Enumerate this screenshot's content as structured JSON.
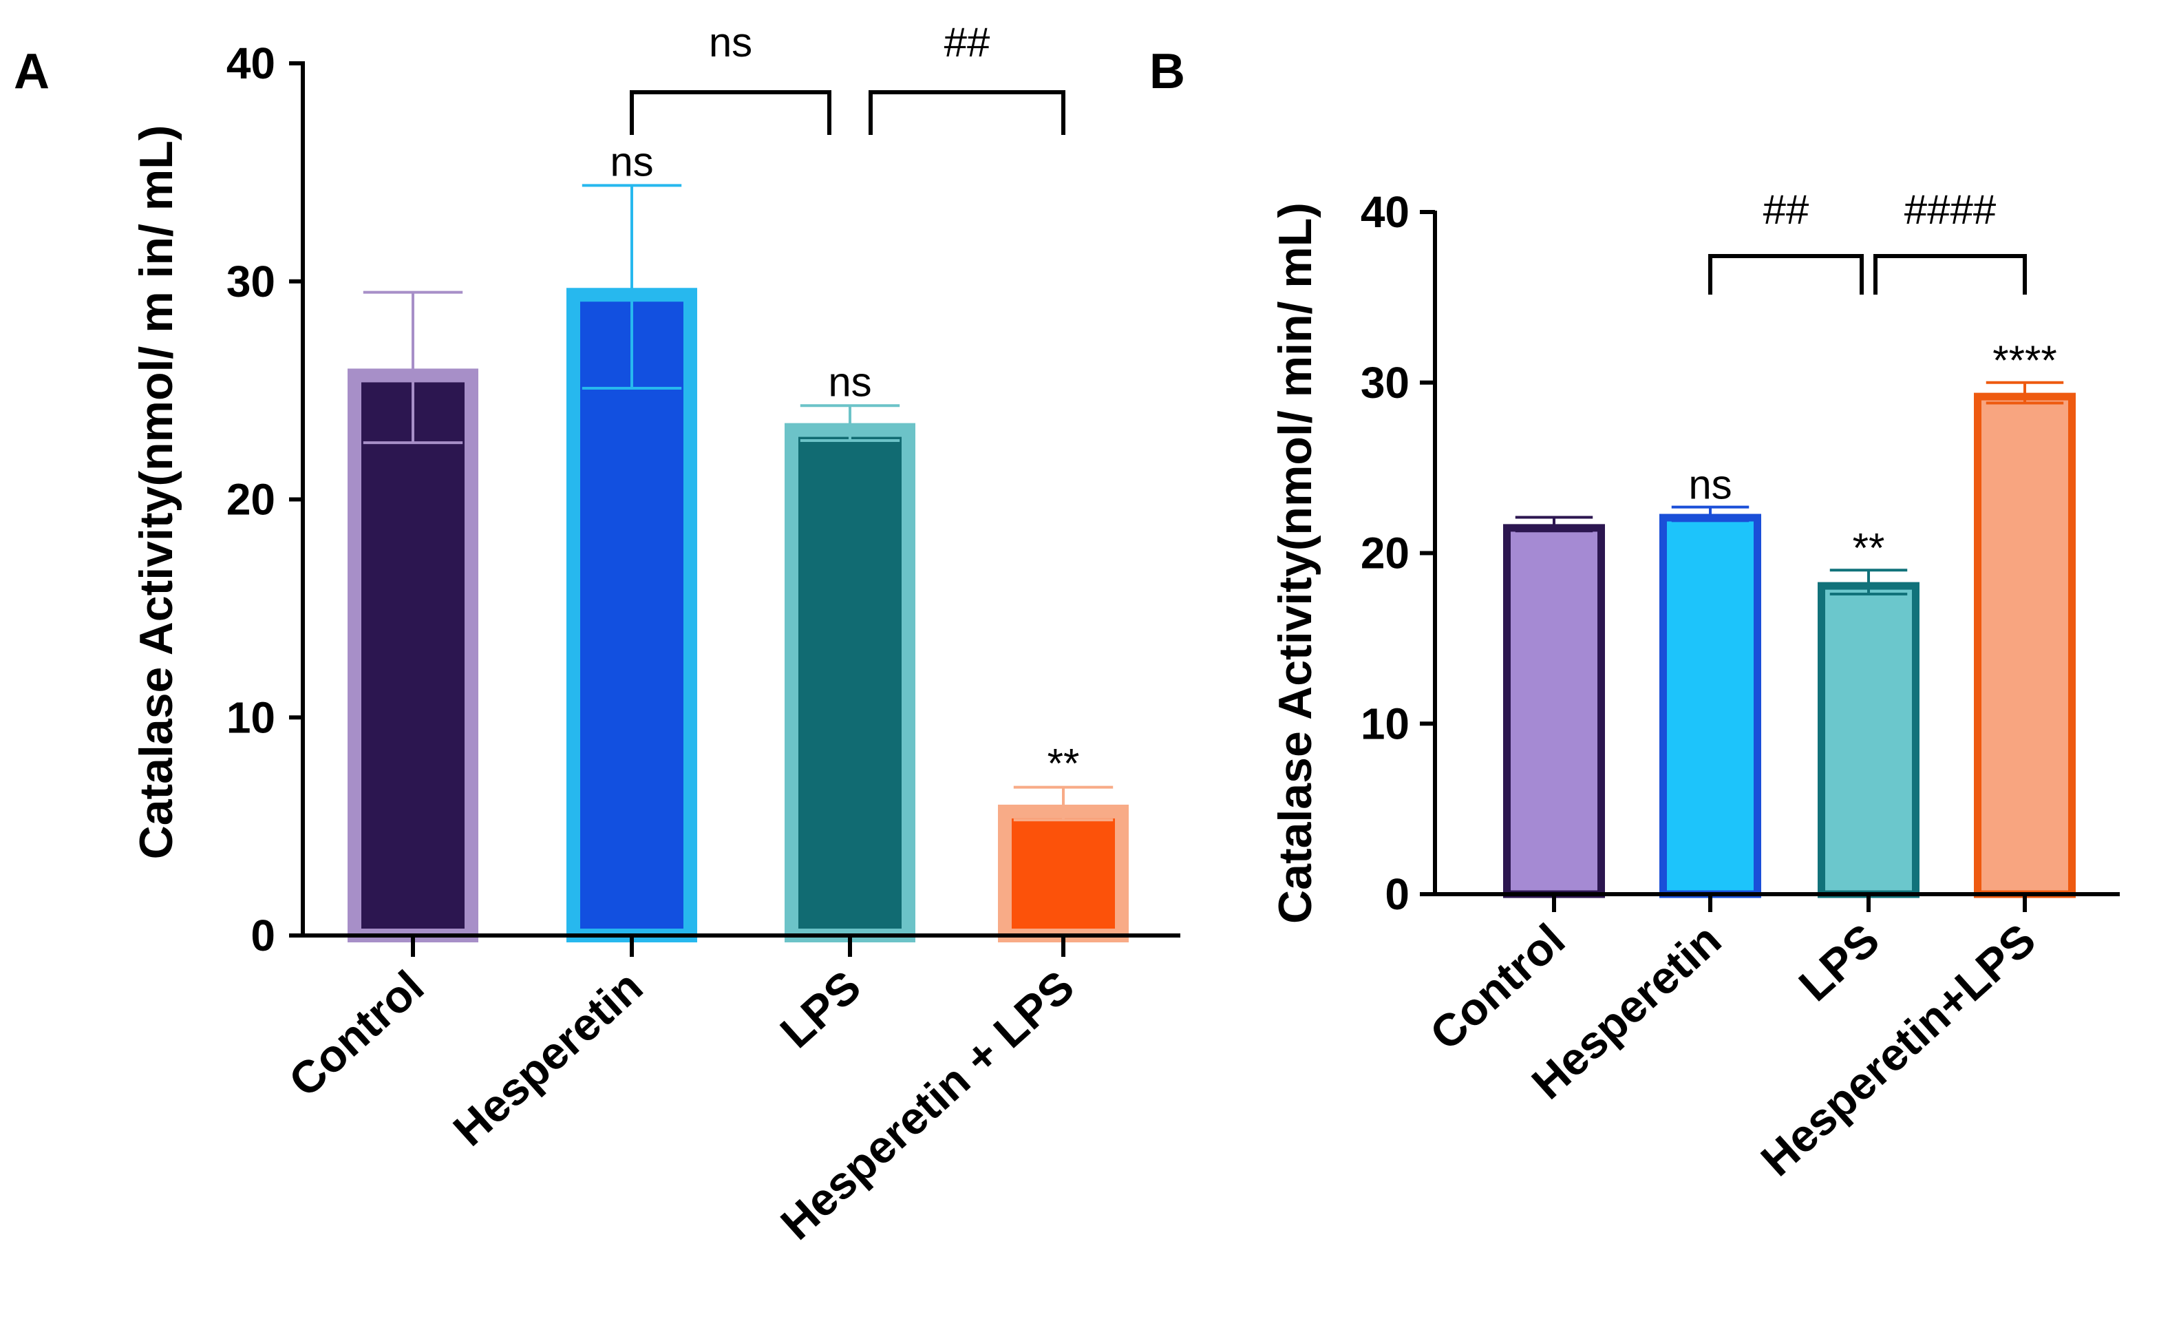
{
  "chart_data": [
    {
      "panel": "A",
      "type": "bar",
      "ylabel": "Catalase Activity(nmol/ m in/ mL)",
      "xlabel": "",
      "ylim": [
        0,
        40
      ],
      "yticks": [
        0,
        10,
        20,
        30,
        40
      ],
      "categories": [
        "Control",
        "Hesperetin",
        "LPS",
        "Hesperetin + LPS"
      ],
      "values": [
        26,
        29.7,
        23.5,
        6
      ],
      "error_high": [
        29.5,
        34.4,
        24.3,
        6.8
      ],
      "error_low": [
        22.6,
        25.1,
        22.7,
        5.3
      ],
      "fill_colors": [
        "#2c1650",
        "#1250e0",
        "#116b72",
        "#fc520a"
      ],
      "edge_colors": [
        "#a78fc8",
        "#27b8ee",
        "#6cc3c8",
        "#f8ab87"
      ],
      "bar_labels": [
        "",
        "ns",
        "ns",
        "**"
      ],
      "comparisons": [
        {
          "from": 1,
          "to": 2,
          "label": "ns"
        },
        {
          "from": 2,
          "to": 3,
          "label": "##"
        }
      ]
    },
    {
      "panel": "B",
      "type": "bar",
      "ylabel": "Catalase Activity(nmol/ min/ mL)",
      "xlabel": "",
      "ylim": [
        0,
        40
      ],
      "yticks": [
        0,
        10,
        20,
        30,
        40
      ],
      "categories": [
        "Control",
        "Hesperetin",
        "LPS",
        "Hesperetin+LPS"
      ],
      "values": [
        21.7,
        22.3,
        18.3,
        29.4
      ],
      "error_high": [
        22.1,
        22.7,
        19.0,
        30.0
      ],
      "error_low": [
        21.3,
        21.9,
        17.6,
        28.8
      ],
      "fill_colors": [
        "#a58ad3",
        "#1dc4fb",
        "#6bc7cc",
        "#f8a580"
      ],
      "edge_colors": [
        "#2c1650",
        "#1a4fd8",
        "#11727a",
        "#ee5a10"
      ],
      "bar_labels": [
        "",
        "ns",
        "**",
        "****"
      ],
      "comparisons": [
        {
          "from": 1,
          "to": 2,
          "label": "##"
        },
        {
          "from": 2,
          "to": 3,
          "label": "####"
        }
      ]
    }
  ]
}
